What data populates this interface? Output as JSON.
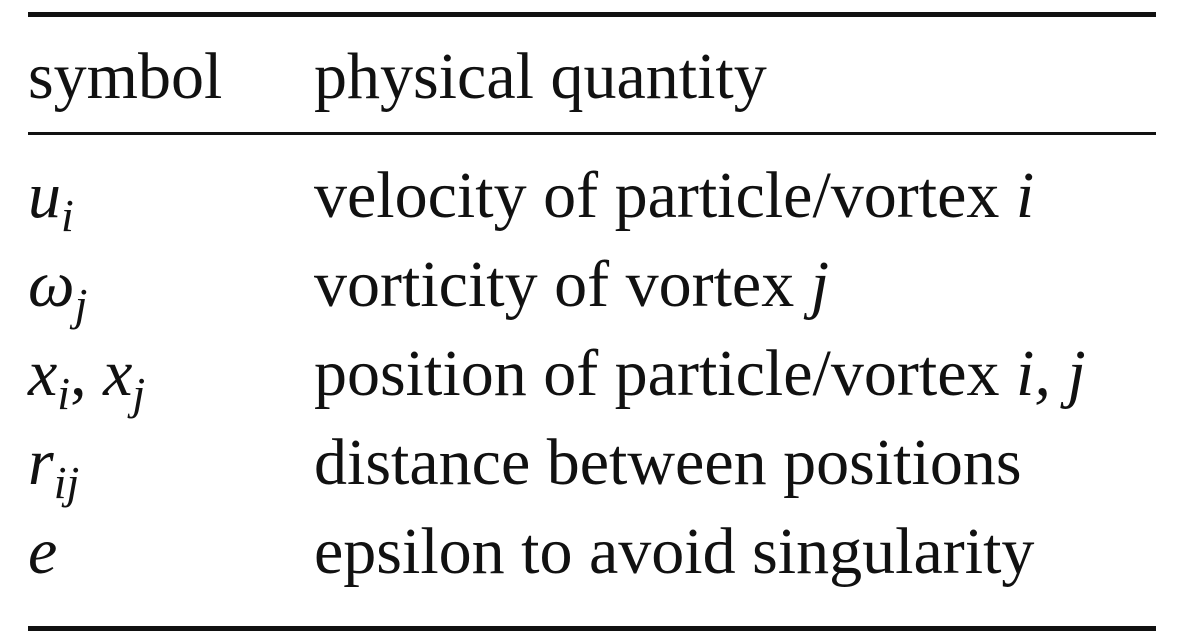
{
  "table": {
    "headers": {
      "symbol": "symbol",
      "quantity": "physical quantity"
    },
    "rows": [
      {
        "symbol_base": "u",
        "symbol_sub": "i",
        "quantity_text": "velocity of particle/vortex ",
        "quantity_var": "i"
      },
      {
        "symbol_base": "ω",
        "symbol_sub": "j",
        "quantity_text": "vorticity of vortex ",
        "quantity_var": "j"
      },
      {
        "symbol_base": "x",
        "symbol_sub": "i",
        "symbol_sep": ", ",
        "symbol_base2": "x",
        "symbol_sub2": "j",
        "quantity_text": "position of particle/vortex ",
        "quantity_var": "i, j"
      },
      {
        "symbol_base": "r",
        "symbol_sub": "ij",
        "quantity_text": "distance between positions",
        "quantity_var": ""
      },
      {
        "symbol_base": "e",
        "symbol_sub": "",
        "quantity_text": "epsilon to avoid singularity",
        "quantity_var": ""
      }
    ]
  }
}
